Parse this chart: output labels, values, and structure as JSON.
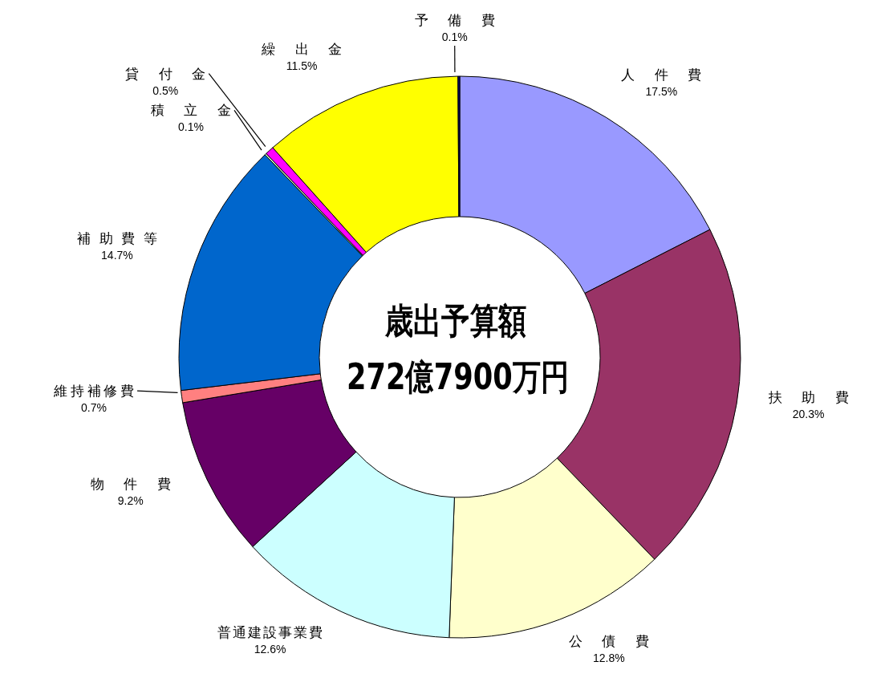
{
  "chart_data": {
    "type": "donut",
    "title": "歳出予算額",
    "subtitle": "272億7900万円",
    "categories": [
      "人件費",
      "扶助費",
      "公債費",
      "普通建設事業費",
      "物件費",
      "維持補修費",
      "補助費等",
      "積立金",
      "貸付金",
      "繰出金",
      "予備費"
    ],
    "values": [
      17.5,
      20.3,
      12.8,
      12.6,
      9.2,
      0.7,
      14.7,
      0.1,
      0.5,
      11.5,
      0.1
    ],
    "value_labels": [
      "17.5%",
      "20.3%",
      "12.8%",
      "12.6%",
      "9.2%",
      "0.7%",
      "14.7%",
      "0.1%",
      "0.5%",
      "11.5%",
      "0.1%"
    ],
    "colors": [
      "#9999ff",
      "#993366",
      "#ffffcc",
      "#ccffff",
      "#660066",
      "#ff8080",
      "#0066cc",
      "#ccffcc",
      "#ff00ff",
      "#ffff00",
      "#000080"
    ]
  }
}
